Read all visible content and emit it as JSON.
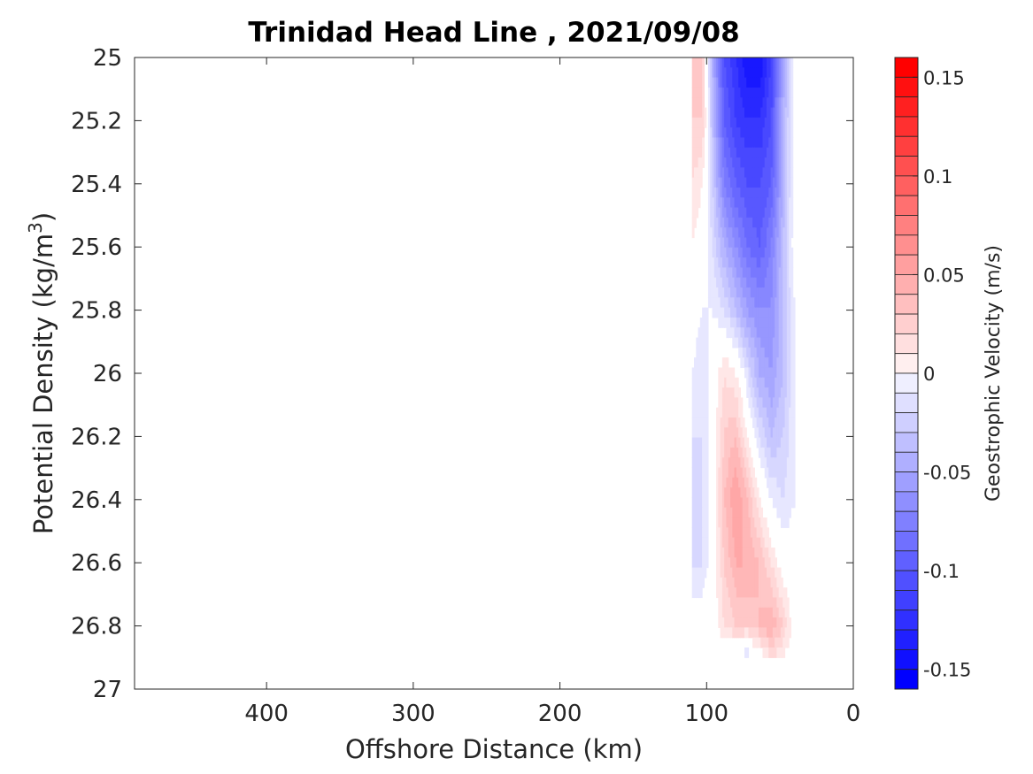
{
  "chart_data": {
    "type": "heatmap",
    "title": "Trinidad Head Line , 2021/09/08",
    "xlabel": "Offshore Distance (km)",
    "ylabel_main": "Potential Density (kg/m",
    "ylabel_sup": "3",
    "ylabel_end": ")",
    "colorbar_label": "Geostrophic Velocity (m/s)",
    "xlim": [
      490,
      0
    ],
    "x_reversed": true,
    "ylim": [
      25,
      27
    ],
    "y_reversed": true,
    "x_ticks": [
      400,
      300,
      200,
      100,
      0
    ],
    "y_ticks": [
      "25",
      "25.2",
      "25.4",
      "25.6",
      "25.8",
      "26",
      "26.2",
      "26.4",
      "26.6",
      "26.8",
      "27"
    ],
    "colorbar_range": [
      -0.16,
      0.16
    ],
    "colorbar_step": 0.01,
    "colorbar_ticks": [
      "-0.15",
      "-0.1",
      "-0.05",
      "0",
      "0.05",
      "0.1",
      "0.15"
    ],
    "colormap": {
      "negative": "#0000ff",
      "zero": "#ffffff",
      "positive": "#ff0000"
    },
    "data_columns_x_km": [
      110,
      103,
      96,
      88,
      80,
      72,
      64,
      56,
      48,
      40,
      33
    ],
    "data_rows_density": [
      25.0,
      25.2,
      25.4,
      25.6,
      25.8,
      26.0,
      26.2,
      26.4,
      26.6,
      26.8,
      26.9
    ],
    "velocity_grid": [
      [
        0.03,
        0.03,
        -0.05,
        -0.11,
        -0.13,
        -0.15,
        -0.15,
        -0.12,
        -0.06,
        0.0,
        0.01
      ],
      [
        0.03,
        0.03,
        -0.04,
        -0.1,
        -0.12,
        -0.13,
        -0.13,
        -0.11,
        -0.05,
        0.0,
        0.01
      ],
      [
        0.02,
        0.01,
        -0.03,
        -0.08,
        -0.1,
        -0.11,
        -0.11,
        -0.1,
        -0.05,
        0.0,
        0.0
      ],
      [
        0.01,
        0.0,
        -0.02,
        -0.05,
        -0.07,
        -0.09,
        -0.1,
        -0.08,
        -0.04,
        0.0,
        0.0
      ],
      [
        0.0,
        -0.01,
        -0.01,
        -0.02,
        -0.04,
        -0.06,
        -0.07,
        -0.07,
        -0.04,
        -0.01,
        0.0
      ],
      [
        -0.01,
        -0.02,
        0.0,
        0.02,
        0.01,
        -0.02,
        -0.05,
        -0.06,
        -0.04,
        -0.01,
        0.0
      ],
      [
        -0.02,
        -0.02,
        0.0,
        0.03,
        0.04,
        0.01,
        -0.02,
        -0.04,
        -0.03,
        -0.01,
        0.0
      ],
      [
        -0.02,
        -0.02,
        0.0,
        0.04,
        0.06,
        0.04,
        0.01,
        -0.01,
        -0.02,
        -0.01,
        0.0
      ],
      [
        -0.02,
        -0.02,
        0.0,
        0.03,
        0.05,
        0.05,
        0.04,
        0.02,
        0.0,
        0.0,
        0.0
      ],
      [
        0.0,
        0.0,
        0.0,
        0.02,
        0.03,
        0.03,
        0.04,
        0.05,
        0.03,
        0.0,
        0.0
      ],
      [
        0.0,
        0.0,
        0.0,
        0.0,
        -0.01,
        -0.02,
        0.0,
        0.02,
        0.01,
        0.0,
        0.0
      ]
    ]
  }
}
